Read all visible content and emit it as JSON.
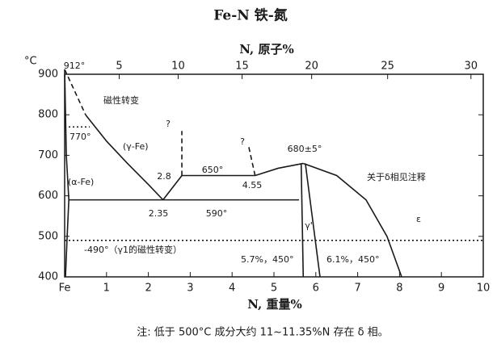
{
  "chart_data": {
    "type": "phase-diagram",
    "title": "Fe-N 铁-氮",
    "x_label": "N, 重量%",
    "x2_label": "N, 原子%",
    "y_label": "°C",
    "note": "注: 低于 500°C 成分大约 11~11.35%N 存在 δ 相。",
    "xlim": [
      0,
      10
    ],
    "ylim": [
      400,
      900
    ],
    "xticks": [
      {
        "value": 0,
        "label": "Fe"
      },
      1,
      2,
      3,
      4,
      5,
      6,
      7,
      8,
      9,
      10
    ],
    "x2ticks": [
      5,
      10,
      15,
      20,
      25,
      30
    ],
    "yticks": [
      400,
      500,
      600,
      700,
      800,
      900
    ],
    "color": "#1a1a1a",
    "series": [
      {
        "x": [
          0,
          0.5
        ],
        "values": [
          912,
          800
        ],
        "style": "dashed"
      },
      {
        "x": [
          0.5,
          1,
          1.5,
          2,
          2.35
        ],
        "values": [
          800,
          735,
          680,
          628,
          590
        ],
        "style": "solid"
      },
      {
        "x": [
          0,
          0.04,
          0.1,
          0.06,
          0.02
        ],
        "values": [
          912,
          700,
          590,
          500,
          400
        ],
        "style": "solid"
      },
      {
        "x": [
          0,
          0.6
        ],
        "values": [
          770,
          770
        ],
        "style": "dotted"
      },
      {
        "x": [
          0.1,
          5.6
        ],
        "values": [
          590,
          590
        ],
        "style": "solid"
      },
      {
        "x": [
          2.35,
          2.8
        ],
        "values": [
          590,
          650
        ],
        "style": "solid"
      },
      {
        "x": [
          2.8,
          2.8
        ],
        "values": [
          650,
          760
        ],
        "style": "dashed"
      },
      {
        "x": [
          2.8,
          4.55
        ],
        "values": [
          650,
          650
        ],
        "style": "solid"
      },
      {
        "x": [
          4.55,
          5.1,
          5.7
        ],
        "values": [
          650,
          668,
          680
        ],
        "style": "solid"
      },
      {
        "x": [
          4.55,
          4.4
        ],
        "values": [
          650,
          720
        ],
        "style": "dashed"
      },
      {
        "x": [
          5.7,
          6.5,
          7.2,
          7.7,
          8.05
        ],
        "values": [
          680,
          650,
          590,
          500,
          400
        ],
        "style": "solid"
      },
      {
        "x": [
          5.65,
          5.7
        ],
        "values": [
          680,
          400
        ],
        "style": "solid"
      },
      {
        "x": [
          5.75,
          6.1
        ],
        "values": [
          680,
          400
        ],
        "style": "solid"
      },
      {
        "x": [
          0,
          10
        ],
        "values": [
          490,
          490
        ],
        "style": "dotted"
      }
    ],
    "annotations": [
      "912°",
      "磁性转变",
      "770°",
      "(γ-Fe)",
      "?",
      "2.8",
      "650°",
      "?",
      "4.55",
      "680±5°",
      "(α-Fe)",
      "2.35",
      "590°",
      "γ'",
      "关于δ相见注释",
      "ε",
      "-490°（γ1的磁性转变）",
      "5.7%，450°",
      "6.1%，450°"
    ]
  }
}
